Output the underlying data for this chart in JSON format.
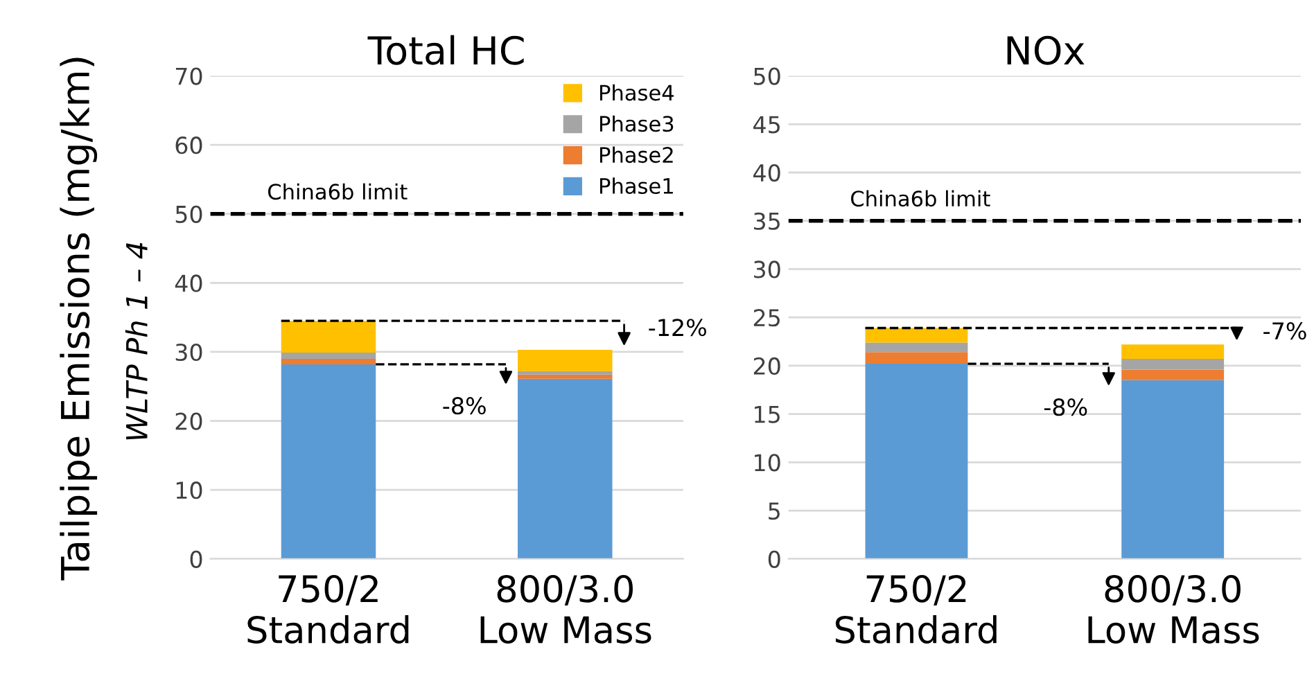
{
  "chart_data": [
    {
      "type": "bar",
      "title": "Total HC",
      "ylabel": "Tailpipe Emissions (mg/km)",
      "categories": [
        "750/2\nStandard",
        "800/3.0\nLow Mass"
      ],
      "stacked": true,
      "series": [
        {
          "name": "Phase1",
          "color": "#5b9bd5",
          "values": [
            28.2,
            26.1
          ]
        },
        {
          "name": "Phase2",
          "color": "#ed7d31",
          "values": [
            0.8,
            0.6
          ]
        },
        {
          "name": "Phase3",
          "color": "#a5a5a5",
          "values": [
            0.9,
            0.5
          ]
        },
        {
          "name": "Phase4",
          "color": "#ffc000",
          "values": [
            4.6,
            3.1
          ]
        }
      ],
      "ylim": [
        0,
        70
      ],
      "yticks": [
        0,
        10,
        20,
        30,
        40,
        50,
        60,
        70
      ],
      "grid": "y",
      "legend": "top right",
      "ref_lines": [
        {
          "axis": "y",
          "value": 50,
          "label": "China6b limit",
          "color": "#000000",
          "line_style": "dashed"
        }
      ],
      "annotations": [
        "-12%",
        "-8%",
        "WLTP Ph 1 – 4"
      ]
    },
    {
      "type": "bar",
      "title": "NOx",
      "categories": [
        "750/2\nStandard",
        "800/3.0\nLow Mass"
      ],
      "stacked": true,
      "series": [
        {
          "color": "#5b9bd5",
          "values": [
            20.2,
            18.5
          ]
        },
        {
          "color": "#ed7d31",
          "values": [
            1.2,
            1.1
          ]
        },
        {
          "color": "#a5a5a5",
          "values": [
            1.0,
            1.1
          ]
        },
        {
          "color": "#ffc000",
          "values": [
            1.5,
            1.5
          ]
        }
      ],
      "ylim": [
        0,
        50
      ],
      "yticks": [
        0,
        5,
        10,
        15,
        20,
        25,
        30,
        35,
        40,
        45,
        50
      ],
      "grid": "y",
      "legend": false,
      "ref_lines": [
        {
          "axis": "y",
          "value": 35,
          "label": "China6b limit",
          "color": "#000000",
          "line_style": "dashed"
        }
      ],
      "annotations": [
        "-7%",
        "-8%"
      ]
    }
  ]
}
